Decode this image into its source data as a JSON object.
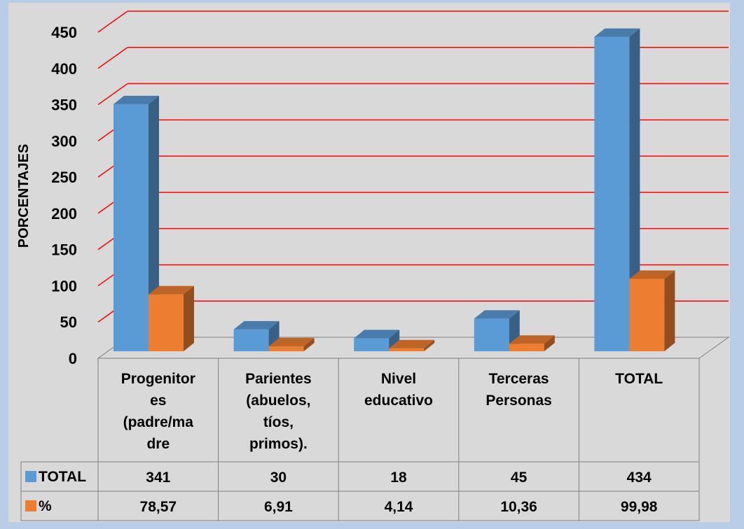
{
  "chart_data": {
    "type": "bar",
    "ylabel": "PORCENTAJES",
    "ylim": [
      0,
      450
    ],
    "yticks": [
      0,
      50,
      100,
      150,
      200,
      250,
      300,
      350,
      400,
      450
    ],
    "grid": true,
    "grid_color": "#ff0000",
    "categories": [
      [
        "Progenitor",
        "es",
        "(padre/ma",
        "dre"
      ],
      [
        "Parientes",
        "(abuelos,",
        "tíos,",
        "primos)."
      ],
      [
        "Nivel",
        "educativo"
      ],
      [
        "Terceras",
        "Personas"
      ],
      [
        "TOTAL"
      ]
    ],
    "series": [
      {
        "name": "TOTAL",
        "color": "#5b9bd5",
        "values": [
          341,
          30,
          18,
          45,
          434
        ],
        "labels": [
          "341",
          "30",
          "18",
          "45",
          "434"
        ]
      },
      {
        "name": "%",
        "color": "#ed7d31",
        "values": [
          78.57,
          6.91,
          4.14,
          10.36,
          99.98
        ],
        "labels": [
          "78,57",
          "6,91",
          "4,14",
          "10,36",
          "99,98"
        ]
      }
    ],
    "data_table": true
  }
}
